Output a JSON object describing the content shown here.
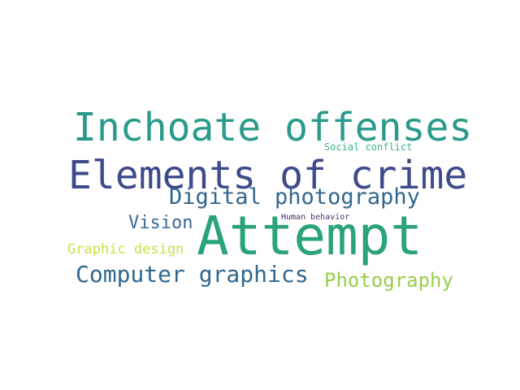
{
  "word_cloud": {
    "words": [
      {
        "key": "inchoate",
        "text": "Inchoate offenses",
        "color": "#2a9a8a"
      },
      {
        "key": "social",
        "text": "Social conflict",
        "color": "#3bb38a"
      },
      {
        "key": "elements",
        "text": "Elements of crime",
        "color": "#3e4a8a"
      },
      {
        "key": "digital",
        "text": "Digital photography",
        "color": "#33678d"
      },
      {
        "key": "vision",
        "text": "Vision",
        "color": "#3a6a96"
      },
      {
        "key": "human",
        "text": "Human behavior",
        "color": "#4b2c6e"
      },
      {
        "key": "attempt",
        "text": "Attempt",
        "color": "#2aa37a"
      },
      {
        "key": "graphic",
        "text": "Graphic design",
        "color": "#c7e246"
      },
      {
        "key": "computer",
        "text": "Computer graphics",
        "color": "#31678d"
      },
      {
        "key": "photography",
        "text": "Photography",
        "color": "#96cf49"
      }
    ]
  }
}
